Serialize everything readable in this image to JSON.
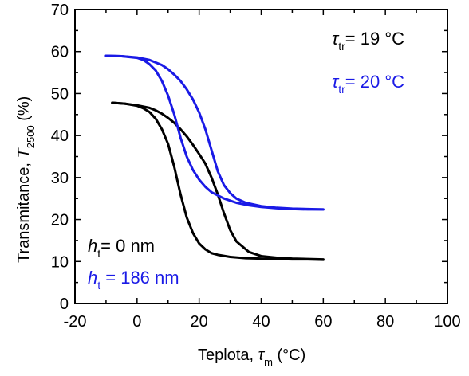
{
  "chart_data": {
    "type": "line",
    "xlabel": {
      "main": "Teplota, ",
      "sym": "τ",
      "sub": "m",
      "unit": " (°C)"
    },
    "ylabel": {
      "main": "Transmitance, ",
      "sym": "T",
      "sub": "2500",
      "unit": " (%)"
    },
    "xlim": [
      -20,
      100
    ],
    "ylim": [
      0,
      70
    ],
    "xticks": [
      "-20",
      "0",
      "20",
      "40",
      "60",
      "80",
      "100"
    ],
    "yticks": [
      "0",
      "10",
      "20",
      "30",
      "40",
      "50",
      "60",
      "70"
    ],
    "grid": false,
    "colors": {
      "black": "#000000",
      "blue": "#1a1ae6"
    },
    "annotations": {
      "tau_black": {
        "sym": "τ",
        "sub": "tr",
        "rest": "= 19 °C"
      },
      "tau_blue": {
        "sym": "τ",
        "sub": "tr",
        "rest": "= 20 °C"
      },
      "h_black": {
        "sym": "h",
        "sub": "t",
        "rest": "= 0 nm"
      },
      "h_blue": {
        "sym": "h",
        "sub": "t",
        "rest": " = 186 nm"
      }
    },
    "series": [
      {
        "color": "#000000",
        "loop": "heating",
        "x": [
          -8,
          -4,
          0,
          4,
          6,
          8,
          10,
          12,
          14,
          16,
          18,
          20,
          22,
          24,
          26,
          28,
          30,
          32,
          36,
          40,
          45,
          50,
          55,
          60
        ],
        "y": [
          47.8,
          47.6,
          47.2,
          46.6,
          46.0,
          45.2,
          44.2,
          43.0,
          41.5,
          39.8,
          37.8,
          35.6,
          33.3,
          30.0,
          26.0,
          21.5,
          17.5,
          14.8,
          12.3,
          11.3,
          10.9,
          10.7,
          10.6,
          10.5
        ]
      },
      {
        "color": "#000000",
        "loop": "cooling",
        "x": [
          -8,
          -4,
          0,
          2,
          4,
          6,
          8,
          10,
          12,
          14,
          16,
          18,
          20,
          22,
          24,
          26,
          30,
          35,
          40,
          45,
          50,
          55,
          60
        ],
        "y": [
          47.8,
          47.6,
          47.1,
          46.5,
          45.6,
          44.0,
          41.5,
          38.0,
          32.5,
          26.0,
          20.5,
          16.8,
          14.3,
          12.9,
          12.0,
          11.6,
          11.1,
          10.8,
          10.7,
          10.6,
          10.5,
          10.5,
          10.4
        ]
      },
      {
        "color": "#1a1ae6",
        "loop": "heating",
        "x": [
          -10,
          -5,
          0,
          4,
          8,
          10,
          12,
          14,
          16,
          18,
          20,
          22,
          24,
          26,
          28,
          30,
          32,
          35,
          40,
          45,
          50,
          55,
          60
        ],
        "y": [
          59.0,
          58.9,
          58.6,
          58.0,
          56.8,
          55.8,
          54.5,
          53.0,
          51.0,
          48.6,
          45.5,
          41.5,
          36.5,
          31.5,
          28.2,
          26.3,
          25.0,
          24.0,
          23.2,
          22.8,
          22.6,
          22.5,
          22.4
        ]
      },
      {
        "color": "#1a1ae6",
        "loop": "cooling",
        "x": [
          -10,
          -5,
          0,
          2,
          4,
          6,
          8,
          10,
          12,
          14,
          16,
          18,
          20,
          22,
          24,
          28,
          32,
          36,
          40,
          45,
          50,
          55,
          60
        ],
        "y": [
          59.0,
          58.9,
          58.5,
          58.0,
          57.0,
          55.5,
          53.0,
          49.5,
          45.0,
          39.5,
          35.0,
          31.8,
          29.5,
          27.8,
          26.5,
          25.0,
          24.0,
          23.4,
          23.0,
          22.7,
          22.5,
          22.4,
          22.4
        ]
      }
    ]
  }
}
